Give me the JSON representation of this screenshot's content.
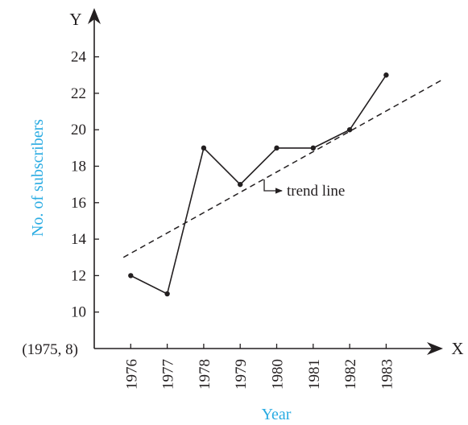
{
  "chart_data": {
    "type": "line",
    "xlabel": "Year",
    "ylabel": "No. of subscribers",
    "x_axis_letter": "X",
    "y_axis_letter": "Y",
    "origin_label": "(1975, 8)",
    "x": [
      1976,
      1977,
      1978,
      1979,
      1980,
      1981,
      1982,
      1983
    ],
    "x_ticks": [
      "1976",
      "1977",
      "1978",
      "1979",
      "1980",
      "1981",
      "1982",
      "1983"
    ],
    "y_ticks": [
      "10",
      "12",
      "14",
      "16",
      "18",
      "20",
      "22",
      "24"
    ],
    "xlim": [
      1975,
      1984
    ],
    "ylim": [
      8,
      25
    ],
    "series": [
      {
        "values": [
          12,
          11,
          19,
          17,
          19,
          19,
          20,
          23
        ]
      }
    ],
    "trend_line": {
      "label": "trend line",
      "x": [
        1975.8,
        1984.5
      ],
      "y": [
        13,
        22.7
      ]
    },
    "grid": false,
    "colors": {
      "ink": "#231f20",
      "axis_title": "#29abe2"
    }
  }
}
